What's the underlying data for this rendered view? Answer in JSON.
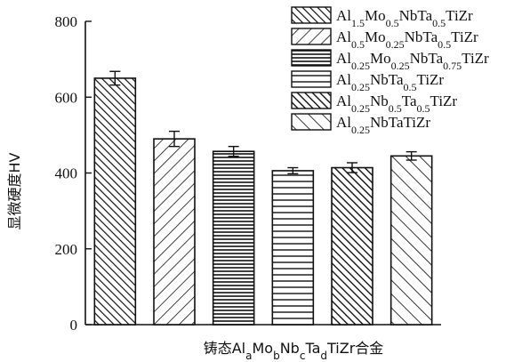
{
  "chart_data": {
    "type": "bar",
    "title": "",
    "xlabel": "铸态Al_aMo_bNb_cTa_dTiZr合金",
    "ylabel": "显微硬度HV",
    "ylim": [
      0,
      800
    ],
    "yticks": [
      0,
      200,
      400,
      600,
      800
    ],
    "grid": false,
    "legend_position": "top-right",
    "series": [
      {
        "name": "Al1.5Mo0.5NbTa0.5TiZr",
        "value": 650,
        "error": 18,
        "pattern": "backslash-dense"
      },
      {
        "name": "Al0.5Mo0.25NbTa0.5TiZr",
        "value": 490,
        "error": 20,
        "pattern": "slash-sparse"
      },
      {
        "name": "Al0.25Mo0.25NbTa0.75TiZr",
        "value": 457,
        "error": 13,
        "pattern": "horizontal-dense"
      },
      {
        "name": "Al0.25NbTa0.5TiZr",
        "value": 406,
        "error": 8,
        "pattern": "horizontal-sparse"
      },
      {
        "name": "Al0.25Nb0.5Ta0.5TiZr",
        "value": 414,
        "error": 13,
        "pattern": "backslash-sparse"
      },
      {
        "name": "Al0.25NbTaTiZr",
        "value": 445,
        "error": 11,
        "pattern": "backslash-wide"
      }
    ],
    "legend_labels": [
      [
        [
          "Al",
          "n"
        ],
        [
          "1.5",
          "s"
        ],
        [
          "Mo",
          "n"
        ],
        [
          "0.5",
          "s"
        ],
        [
          "NbTa",
          "n"
        ],
        [
          "0.5",
          "s"
        ],
        [
          "TiZr",
          "n"
        ]
      ],
      [
        [
          "Al",
          "n"
        ],
        [
          "0.5",
          "s"
        ],
        [
          "Mo",
          "n"
        ],
        [
          "0.25",
          "s"
        ],
        [
          "NbTa",
          "n"
        ],
        [
          "0.5",
          "s"
        ],
        [
          "TiZr",
          "n"
        ]
      ],
      [
        [
          "Al",
          "n"
        ],
        [
          "0.25",
          "s"
        ],
        [
          "Mo",
          "n"
        ],
        [
          "0.25",
          "s"
        ],
        [
          "NbTa",
          "n"
        ],
        [
          "0.75",
          "s"
        ],
        [
          "TiZr",
          "n"
        ]
      ],
      [
        [
          "Al",
          "n"
        ],
        [
          "0.25",
          "s"
        ],
        [
          "NbTa",
          "n"
        ],
        [
          "0.5",
          "s"
        ],
        [
          "TiZr",
          "n"
        ]
      ],
      [
        [
          "Al",
          "n"
        ],
        [
          "0.25",
          "s"
        ],
        [
          "Nb",
          "n"
        ],
        [
          "0.5",
          "s"
        ],
        [
          "Ta",
          "n"
        ],
        [
          "0.5",
          "s"
        ],
        [
          "TiZr",
          "n"
        ]
      ],
      [
        [
          "Al",
          "n"
        ],
        [
          "0.25",
          "s"
        ],
        [
          "NbTaTiZr",
          "n"
        ]
      ]
    ],
    "xlabel_parts": [
      [
        "铸态Al",
        "n"
      ],
      [
        "a",
        "s"
      ],
      [
        "Mo",
        "n"
      ],
      [
        "b",
        "s"
      ],
      [
        "Nb",
        "n"
      ],
      [
        "c",
        "s"
      ],
      [
        "Ta",
        "n"
      ],
      [
        "d",
        "s"
      ],
      [
        "TiZr合金",
        "n"
      ]
    ]
  }
}
